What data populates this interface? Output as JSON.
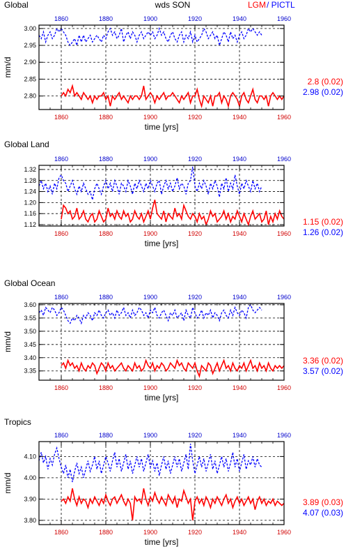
{
  "figure": {
    "title": "wds SON",
    "legend": [
      {
        "label": "LGM",
        "color": "#ff0000"
      },
      {
        "label": "/ PICTL",
        "color": "#0000ff"
      }
    ]
  },
  "chart_data": [
    {
      "type": "line",
      "title": "Global",
      "ylabel": "mm/d",
      "xlabel": "time [yrs]",
      "xlim": [
        1850,
        1960
      ],
      "ylim": [
        2.76,
        3.01
      ],
      "x_ticks": [
        1860,
        1880,
        1900,
        1920,
        1940,
        1960
      ],
      "y_ticks": [
        "3.00",
        "2.95",
        "2.90",
        "2.85",
        "2.80"
      ],
      "grid": true,
      "series": [
        {
          "name": "LGM",
          "color": "#ff0000",
          "style": "solid",
          "x_start": 1860,
          "x_end": 1960,
          "values": [
            2.8,
            2.81,
            2.8,
            2.82,
            2.81,
            2.83,
            2.8,
            2.81,
            2.8,
            2.79,
            2.81,
            2.8,
            2.79,
            2.8,
            2.78,
            2.8,
            2.79,
            2.8,
            2.8,
            2.81,
            2.79,
            2.8,
            2.77,
            2.8,
            2.79,
            2.8,
            2.81,
            2.79,
            2.8,
            2.79,
            2.78,
            2.8,
            2.79,
            2.8,
            2.8,
            2.79,
            2.8,
            2.83,
            2.79,
            2.8,
            2.81,
            2.8,
            2.78,
            2.8,
            2.79,
            2.8,
            2.81,
            2.79,
            2.8,
            2.8,
            2.81,
            2.8,
            2.79,
            2.78,
            2.8,
            2.79,
            2.8,
            2.81,
            2.78,
            2.8,
            2.8,
            2.82,
            2.79,
            2.77,
            2.8,
            2.79,
            2.78,
            2.8,
            2.77,
            2.8,
            2.8,
            2.81,
            2.78,
            2.8,
            2.79,
            2.77,
            2.8,
            2.81,
            2.8,
            2.79,
            2.77,
            2.8,
            2.81,
            2.79,
            2.78,
            2.8,
            2.82,
            2.79,
            2.78,
            2.8,
            2.8,
            2.79,
            2.8,
            2.77,
            2.8,
            2.81,
            2.8,
            2.79,
            2.8,
            2.79,
            2.8
          ]
        },
        {
          "name": "PICTL",
          "color": "#0000ff",
          "style": "dashed",
          "x_start": 1850,
          "x_end": 1950,
          "values": [
            2.98,
            2.97,
            2.99,
            2.96,
            2.98,
            2.99,
            2.97,
            2.98,
            3.0,
            2.99,
            3.0,
            2.99,
            2.98,
            2.96,
            2.95,
            2.96,
            2.97,
            2.95,
            2.98,
            2.96,
            2.98,
            2.96,
            2.97,
            2.98,
            2.96,
            2.97,
            2.98,
            2.97,
            2.96,
            2.98,
            2.97,
            2.99,
            3.0,
            2.98,
            2.99,
            2.97,
            2.98,
            3.0,
            2.96,
            2.98,
            2.99,
            2.97,
            2.99,
            2.98,
            2.96,
            2.98,
            2.99,
            2.97,
            2.98,
            2.99,
            2.98,
            2.99,
            2.97,
            2.98,
            3.0,
            2.98,
            2.99,
            2.97,
            2.96,
            2.98,
            2.99,
            2.97,
            2.96,
            2.98,
            2.99,
            2.96,
            2.98,
            2.97,
            2.99,
            2.96,
            2.98,
            2.96,
            2.97,
            2.98,
            3.0,
            2.99,
            2.97,
            2.98,
            2.99,
            2.97,
            2.98,
            2.95,
            2.97,
            2.99,
            2.98,
            2.96,
            2.99,
            2.97,
            2.98,
            2.96,
            2.98,
            2.99,
            2.97,
            2.98,
            3.0,
            2.99,
            3.0,
            2.99,
            2.98,
            2.99,
            2.98
          ]
        }
      ],
      "stats": [
        {
          "label": "2.8 (0.02)",
          "color": "#ff0000"
        },
        {
          "label": "2.98 (0.02)",
          "color": "#0000ff"
        }
      ]
    },
    {
      "type": "line",
      "title": "Global Land",
      "ylabel": "",
      "xlabel": "time [yrs]",
      "xlim": [
        1850,
        1960
      ],
      "ylim": [
        1.115,
        1.335
      ],
      "x_ticks": [
        1860,
        1880,
        1900,
        1920,
        1940,
        1960
      ],
      "y_ticks": [
        "1.32",
        "1.28",
        "1.24",
        "1.20",
        "1.16",
        "1.12"
      ],
      "grid": true,
      "series": [
        {
          "name": "LGM",
          "color": "#ff0000",
          "style": "solid",
          "x_start": 1860,
          "x_end": 1960,
          "values": [
            1.14,
            1.19,
            1.18,
            1.16,
            1.17,
            1.14,
            1.15,
            1.18,
            1.14,
            1.15,
            1.17,
            1.14,
            1.13,
            1.15,
            1.16,
            1.13,
            1.14,
            1.17,
            1.15,
            1.13,
            1.14,
            1.18,
            1.15,
            1.16,
            1.14,
            1.17,
            1.15,
            1.14,
            1.17,
            1.15,
            1.16,
            1.13,
            1.14,
            1.17,
            1.15,
            1.14,
            1.16,
            1.13,
            1.15,
            1.17,
            1.14,
            1.18,
            1.21,
            1.16,
            1.15,
            1.14,
            1.17,
            1.13,
            1.16,
            1.15,
            1.14,
            1.18,
            1.15,
            1.16,
            1.14,
            1.19,
            1.17,
            1.15,
            1.14,
            1.16,
            1.15,
            1.13,
            1.16,
            1.14,
            1.15,
            1.12,
            1.14,
            1.17,
            1.15,
            1.16,
            1.13,
            1.14,
            1.15,
            1.17,
            1.14,
            1.16,
            1.13,
            1.15,
            1.14,
            1.17,
            1.15,
            1.13,
            1.16,
            1.14,
            1.12,
            1.15,
            1.17,
            1.14,
            1.15,
            1.16,
            1.13,
            1.14,
            1.17,
            1.12,
            1.15,
            1.13,
            1.16,
            1.14,
            1.17,
            1.15,
            1.14
          ]
        },
        {
          "name": "PICTL",
          "color": "#0000ff",
          "style": "dashed",
          "x_start": 1850,
          "x_end": 1950,
          "values": [
            1.26,
            1.28,
            1.25,
            1.27,
            1.24,
            1.26,
            1.23,
            1.27,
            1.25,
            1.29,
            1.3,
            1.28,
            1.27,
            1.24,
            1.26,
            1.28,
            1.25,
            1.23,
            1.26,
            1.24,
            1.27,
            1.25,
            1.23,
            1.24,
            1.21,
            1.25,
            1.27,
            1.25,
            1.23,
            1.26,
            1.28,
            1.25,
            1.27,
            1.24,
            1.28,
            1.26,
            1.23,
            1.27,
            1.26,
            1.24,
            1.28,
            1.26,
            1.23,
            1.27,
            1.25,
            1.28,
            1.26,
            1.24,
            1.27,
            1.25,
            1.28,
            1.26,
            1.24,
            1.27,
            1.28,
            1.23,
            1.26,
            1.28,
            1.25,
            1.27,
            1.24,
            1.26,
            1.29,
            1.25,
            1.27,
            1.26,
            1.23,
            1.27,
            1.28,
            1.33,
            1.26,
            1.24,
            1.27,
            1.25,
            1.28,
            1.26,
            1.23,
            1.27,
            1.25,
            1.28,
            1.26,
            1.22,
            1.27,
            1.25,
            1.29,
            1.24,
            1.27,
            1.25,
            1.3,
            1.26,
            1.23,
            1.27,
            1.25,
            1.28,
            1.26,
            1.24,
            1.28,
            1.25,
            1.27,
            1.24,
            1.26
          ]
        }
      ],
      "stats": [
        {
          "label": "1.15 (0.02)",
          "color": "#ff0000"
        },
        {
          "label": "1.26 (0.02)",
          "color": "#0000ff"
        }
      ]
    },
    {
      "type": "line",
      "title": "Global Ocean",
      "ylabel": "mm/d",
      "xlabel": "time [yrs]",
      "xlim": [
        1850,
        1960
      ],
      "ylim": [
        3.315,
        3.605
      ],
      "x_ticks": [
        1860,
        1880,
        1900,
        1920,
        1940,
        1960
      ],
      "y_ticks": [
        "3.60",
        "3.55",
        "3.50",
        "3.45",
        "3.40",
        "3.35"
      ],
      "grid": true,
      "series": [
        {
          "name": "LGM",
          "color": "#ff0000",
          "style": "solid",
          "x_start": 1860,
          "x_end": 1960,
          "values": [
            3.37,
            3.38,
            3.36,
            3.39,
            3.37,
            3.38,
            3.36,
            3.37,
            3.35,
            3.38,
            3.36,
            3.35,
            3.37,
            3.36,
            3.38,
            3.37,
            3.34,
            3.36,
            3.38,
            3.37,
            3.35,
            3.38,
            3.36,
            3.37,
            3.35,
            3.36,
            3.37,
            3.38,
            3.36,
            3.35,
            3.37,
            3.36,
            3.35,
            3.38,
            3.36,
            3.37,
            3.35,
            3.36,
            3.39,
            3.37,
            3.36,
            3.38,
            3.35,
            3.37,
            3.36,
            3.38,
            3.37,
            3.35,
            3.36,
            3.38,
            3.37,
            3.36,
            3.39,
            3.37,
            3.38,
            3.36,
            3.35,
            3.38,
            3.37,
            3.36,
            3.38,
            3.35,
            3.33,
            3.37,
            3.36,
            3.35,
            3.38,
            3.37,
            3.34,
            3.36,
            3.38,
            3.35,
            3.37,
            3.39,
            3.36,
            3.37,
            3.35,
            3.38,
            3.36,
            3.35,
            3.37,
            3.36,
            3.38,
            3.35,
            3.37,
            3.39,
            3.36,
            3.37,
            3.35,
            3.38,
            3.36,
            3.37,
            3.35,
            3.38,
            3.36,
            3.35,
            3.37,
            3.36,
            3.37,
            3.36,
            3.37
          ]
        },
        {
          "name": "PICTL",
          "color": "#0000ff",
          "style": "dashed",
          "x_start": 1850,
          "x_end": 1950,
          "values": [
            3.57,
            3.58,
            3.56,
            3.59,
            3.58,
            3.57,
            3.59,
            3.58,
            3.56,
            3.57,
            3.59,
            3.58,
            3.56,
            3.54,
            3.53,
            3.55,
            3.54,
            3.56,
            3.55,
            3.53,
            3.56,
            3.55,
            3.57,
            3.56,
            3.54,
            3.57,
            3.56,
            3.58,
            3.56,
            3.55,
            3.57,
            3.58,
            3.56,
            3.57,
            3.55,
            3.58,
            3.56,
            3.57,
            3.59,
            3.56,
            3.57,
            3.55,
            3.58,
            3.56,
            3.57,
            3.59,
            3.58,
            3.56,
            3.57,
            3.55,
            3.58,
            3.57,
            3.59,
            3.56,
            3.55,
            3.57,
            3.58,
            3.56,
            3.54,
            3.57,
            3.56,
            3.58,
            3.55,
            3.56,
            3.57,
            3.54,
            3.58,
            3.56,
            3.55,
            3.59,
            3.57,
            3.55,
            3.56,
            3.58,
            3.55,
            3.57,
            3.56,
            3.58,
            3.55,
            3.57,
            3.56,
            3.54,
            3.57,
            3.58,
            3.56,
            3.55,
            3.58,
            3.56,
            3.59,
            3.57,
            3.56,
            3.58,
            3.57,
            3.55,
            3.59,
            3.6,
            3.58,
            3.57,
            3.58,
            3.59,
            3.58
          ]
        }
      ],
      "stats": [
        {
          "label": "3.36 (0.02)",
          "color": "#ff0000"
        },
        {
          "label": "3.57 (0.02)",
          "color": "#0000ff"
        }
      ]
    },
    {
      "type": "line",
      "title": "Tropics",
      "ylabel": "mm/d",
      "xlabel": "time [yrs]",
      "xlim": [
        1850,
        1960
      ],
      "ylim": [
        3.78,
        4.17
      ],
      "x_ticks": [
        1860,
        1880,
        1900,
        1920,
        1940,
        1960
      ],
      "y_ticks": [
        "4.10",
        "4.00",
        "3.90",
        "3.80"
      ],
      "grid": true,
      "series": [
        {
          "name": "LGM",
          "color": "#ff0000",
          "style": "solid",
          "x_start": 1860,
          "x_end": 1960,
          "values": [
            3.89,
            3.9,
            3.88,
            3.91,
            3.89,
            3.95,
            3.9,
            3.87,
            3.91,
            3.88,
            3.9,
            3.89,
            3.86,
            3.9,
            3.88,
            3.91,
            3.89,
            3.87,
            3.9,
            3.88,
            3.92,
            3.89,
            3.87,
            3.9,
            3.91,
            3.88,
            3.9,
            3.92,
            3.89,
            3.87,
            3.9,
            3.88,
            3.8,
            3.91,
            3.89,
            3.9,
            3.88,
            3.95,
            3.9,
            3.87,
            3.91,
            3.89,
            3.93,
            3.9,
            3.88,
            3.91,
            3.89,
            3.87,
            3.92,
            3.9,
            3.88,
            3.91,
            3.86,
            3.9,
            3.89,
            3.94,
            3.91,
            3.88,
            3.9,
            3.8,
            3.89,
            3.91,
            3.88,
            3.9,
            3.87,
            3.91,
            3.89,
            3.86,
            3.9,
            3.88,
            3.91,
            3.89,
            3.87,
            3.9,
            3.92,
            3.88,
            3.9,
            3.86,
            3.89,
            3.91,
            3.88,
            3.9,
            3.87,
            3.89,
            3.91,
            3.88,
            3.9,
            3.85,
            3.89,
            3.91,
            3.88,
            3.9,
            3.87,
            3.89,
            3.88,
            3.9,
            3.87,
            3.89,
            3.88,
            3.87,
            3.88
          ]
        },
        {
          "name": "PICTL",
          "color": "#0000ff",
          "style": "dashed",
          "x_start": 1850,
          "x_end": 1950,
          "values": [
            4.08,
            4.12,
            4.07,
            4.1,
            4.04,
            4.09,
            4.06,
            4.11,
            4.14,
            4.09,
            4.05,
            4.02,
            4.06,
            4.0,
            4.04,
            3.98,
            4.03,
            4.07,
            4.02,
            4.05,
            4.0,
            4.04,
            4.08,
            4.03,
            4.06,
            4.1,
            4.04,
            4.08,
            4.02,
            4.06,
            4.1,
            4.07,
            4.03,
            4.08,
            4.12,
            4.05,
            4.09,
            4.03,
            4.07,
            4.11,
            4.04,
            4.08,
            4.02,
            4.06,
            4.1,
            4.05,
            4.09,
            4.03,
            4.07,
            4.11,
            4.05,
            4.08,
            4.03,
            4.07,
            4.01,
            4.06,
            4.1,
            4.04,
            4.08,
            4.02,
            4.06,
            4.1,
            4.05,
            4.09,
            4.03,
            4.07,
            4.11,
            4.04,
            4.16,
            4.08,
            4.02,
            4.06,
            4.1,
            4.05,
            4.09,
            4.03,
            4.07,
            4.11,
            4.04,
            4.08,
            4.02,
            4.06,
            4.1,
            4.05,
            4.09,
            4.03,
            4.07,
            4.12,
            4.05,
            4.09,
            4.03,
            4.07,
            4.11,
            4.04,
            4.08,
            4.06,
            4.1,
            4.05,
            4.09,
            4.06,
            4.05
          ]
        }
      ],
      "stats": [
        {
          "label": "3.89 (0.03)",
          "color": "#ff0000"
        },
        {
          "label": "4.07 (0.03)",
          "color": "#0000ff"
        }
      ]
    }
  ]
}
